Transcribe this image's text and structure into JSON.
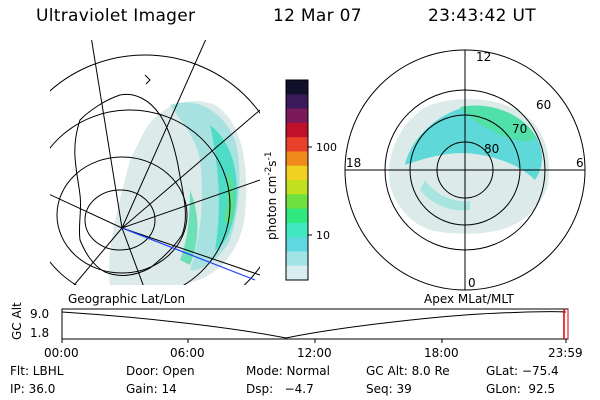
{
  "header": {
    "instrument": "Ultraviolet Imager",
    "date": "12 Mar 07",
    "time": "23:43:42 UT"
  },
  "colorbar": {
    "unit_label": "photon cm",
    "unit_exp1": "-2",
    "unit_mid": "s",
    "unit_exp2": "-1",
    "tick_100": "100",
    "tick_10": "10",
    "colors": [
      "#10102a",
      "#3a1a5a",
      "#7a1a5a",
      "#c0102a",
      "#e8402a",
      "#f08a1a",
      "#f0d020",
      "#c0e020",
      "#70e040",
      "#30e880",
      "#40e8c0",
      "#60d8e0",
      "#a0e4e8",
      "#d8eef0"
    ]
  },
  "left_map": {
    "caption": "Geographic Lat/Lon"
  },
  "right_map": {
    "caption": "Apex MLat/MLT",
    "labels": {
      "mlt_top": "12",
      "mlt_left": "18",
      "mlt_right": "6",
      "mlt_bottom": "0",
      "lat60": "60",
      "lat70": "70",
      "lat80": "80"
    }
  },
  "timeline": {
    "ylabel": "GC Alt",
    "ytick_top": "9.0",
    "ytick_bottom": "1.8",
    "xticks": [
      "00:00",
      "06:00",
      "12:00",
      "18:00",
      "23:59"
    ]
  },
  "info": {
    "row1": {
      "filter": "Flt: LBHL",
      "door": "Door: Open",
      "mode": "Mode: Normal",
      "gcalt": "GC Alt: 8.0 Re",
      "glat": "GLat: −75.4"
    },
    "row2": {
      "ip": "IP: 36.0",
      "gain": "Gain: 14",
      "dsp": "Dsp:   −4.7",
      "seq": "Seq: 39",
      "glon": "GLon:  92.5"
    }
  }
}
